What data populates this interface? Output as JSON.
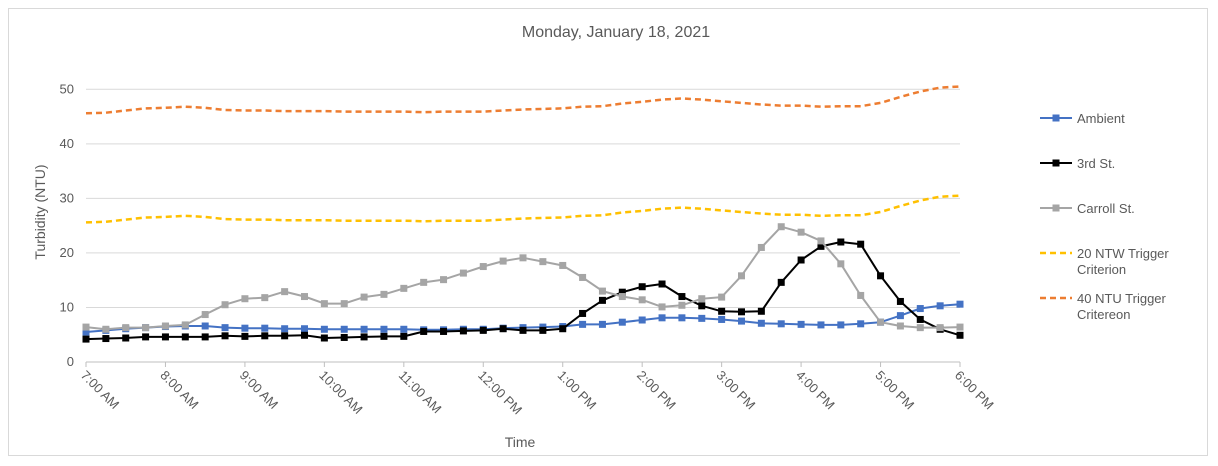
{
  "chart_data": {
    "type": "line",
    "title": "Monday, January 18, 2021",
    "xlabel": "Time",
    "ylabel": "Turbidity (NTU)",
    "ylim": [
      0,
      55
    ],
    "yticks": [
      0,
      10,
      20,
      30,
      40,
      50
    ],
    "grid": "horizontal",
    "legend_position": "right",
    "x_tick_labels": [
      "7:00 AM",
      "8:00 AM",
      "9:00 AM",
      "10:00 AM",
      "11:00 AM",
      "12:00 PM",
      "1:00 PM",
      "2:00 PM",
      "3:00 PM",
      "4:00 PM",
      "5:00 PM",
      "6:00 PM"
    ],
    "x_hours": [
      7,
      7.25,
      7.5,
      7.75,
      8,
      8.25,
      8.5,
      8.75,
      9,
      9.25,
      9.5,
      9.75,
      10,
      10.25,
      10.5,
      10.75,
      11,
      11.25,
      11.5,
      11.75,
      12,
      12.25,
      12.5,
      12.75,
      13,
      13.25,
      13.5,
      13.75,
      14,
      14.25,
      14.5,
      14.75,
      15,
      15.25,
      15.5,
      15.75,
      16,
      16.25,
      16.5,
      16.75,
      17,
      17.25,
      17.5,
      17.75,
      18
    ],
    "series": [
      {
        "name": "Ambient",
        "color": "#4472c4",
        "style": "marker-square",
        "values": [
          5.5,
          5.8,
          6.1,
          6.3,
          6.5,
          6.6,
          6.6,
          6.3,
          6.2,
          6.2,
          6.1,
          6.1,
          6.0,
          6.0,
          6.0,
          6.0,
          6.0,
          5.9,
          5.9,
          6.0,
          6.0,
          6.2,
          6.3,
          6.4,
          6.5,
          6.9,
          6.9,
          7.3,
          7.7,
          8.1,
          8.1,
          8.0,
          7.8,
          7.5,
          7.1,
          7.0,
          6.9,
          6.8,
          6.8,
          7.0,
          7.3,
          8.5,
          9.8,
          10.3,
          10.6
        ]
      },
      {
        "name": "3rd St.",
        "color": "#000000",
        "style": "marker-square",
        "values": [
          4.2,
          4.3,
          4.4,
          4.6,
          4.6,
          4.6,
          4.6,
          4.8,
          4.7,
          4.8,
          4.8,
          4.9,
          4.4,
          4.5,
          4.6,
          4.7,
          4.7,
          5.6,
          5.6,
          5.7,
          5.8,
          6.1,
          5.8,
          5.8,
          6.1,
          8.9,
          11.3,
          12.8,
          13.8,
          14.3,
          12.0,
          10.3,
          9.3,
          9.2,
          9.3,
          14.6,
          18.7,
          21.2,
          22.0,
          21.6,
          15.8,
          11.1,
          7.8,
          6.0,
          4.9
        ]
      },
      {
        "name": "Carroll St.",
        "color": "#a5a5a5",
        "style": "marker-square",
        "values": [
          6.4,
          6.0,
          6.3,
          6.3,
          6.6,
          6.8,
          8.7,
          10.5,
          11.6,
          11.8,
          12.9,
          12.0,
          10.7,
          10.7,
          11.9,
          12.4,
          13.5,
          14.6,
          15.1,
          16.3,
          17.5,
          18.5,
          19.1,
          18.4,
          17.7,
          15.5,
          13.0,
          12.0,
          11.4,
          10.1,
          10.4,
          11.6,
          11.9,
          15.8,
          21.0,
          24.8,
          23.8,
          22.2,
          18.0,
          12.2,
          7.3,
          6.6,
          6.3,
          6.3,
          6.4
        ]
      },
      {
        "name": "20 NTW Trigger Criterion",
        "name_lines": [
          "20 NTW Trigger",
          "Criterion"
        ],
        "color": "#ffc000",
        "style": "dashed",
        "values": [
          25.6,
          25.7,
          26.1,
          26.5,
          26.6,
          26.8,
          26.6,
          26.2,
          26.1,
          26.1,
          26.0,
          26.0,
          26.0,
          25.9,
          25.9,
          25.9,
          25.9,
          25.8,
          25.9,
          25.9,
          25.9,
          26.1,
          26.3,
          26.4,
          26.5,
          26.8,
          26.9,
          27.4,
          27.7,
          28.1,
          28.3,
          28.1,
          27.8,
          27.5,
          27.2,
          27.0,
          27.0,
          26.8,
          26.9,
          26.9,
          27.5,
          28.6,
          29.6,
          30.3,
          30.5
        ]
      },
      {
        "name": "40 NTU Trigger Critereon",
        "name_lines": [
          "40 NTU Trigger",
          "Critereon"
        ],
        "color": "#ed7d31",
        "style": "dashed",
        "values": [
          45.6,
          45.7,
          46.1,
          46.5,
          46.6,
          46.8,
          46.6,
          46.2,
          46.1,
          46.1,
          46.0,
          46.0,
          46.0,
          45.9,
          45.9,
          45.9,
          45.9,
          45.8,
          45.9,
          45.9,
          45.9,
          46.1,
          46.3,
          46.4,
          46.5,
          46.8,
          46.9,
          47.4,
          47.7,
          48.1,
          48.3,
          48.1,
          47.8,
          47.5,
          47.2,
          47.0,
          47.0,
          46.8,
          46.9,
          46.9,
          47.5,
          48.6,
          49.6,
          50.3,
          50.5
        ]
      }
    ]
  }
}
